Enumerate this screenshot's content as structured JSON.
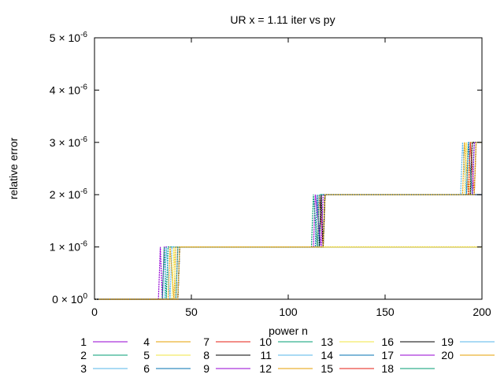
{
  "chart_data": {
    "type": "line",
    "title": "UR x = 1.11 iter vs py",
    "xlabel": "power n",
    "ylabel": "relative error",
    "xlim": [
      0,
      200
    ],
    "ylim": [
      0,
      5e-06
    ],
    "x_ticks": [
      0,
      50,
      100,
      150,
      200
    ],
    "x_tick_labels": [
      "0",
      "50",
      "100",
      "150",
      "200"
    ],
    "y_ticks": [
      0,
      1e-06,
      2e-06,
      3e-06,
      4e-06,
      5e-06
    ],
    "y_tick_mantissa": [
      "0",
      "1",
      "2",
      "3",
      "4",
      "5"
    ],
    "y_tick_exponent": [
      "0",
      "-6",
      "-6",
      "-6",
      "-6",
      "-6"
    ],
    "y_tick_times": "×",
    "y_tick_base": "10",
    "grid": false,
    "legend_position": "bottom",
    "series_colors": [
      "#9400d3",
      "#009e73",
      "#56b4e9",
      "#e69f00",
      "#f0e442",
      "#0072b2",
      "#e51e10",
      "#000000",
      "#9400d3",
      "#009e73",
      "#56b4e9",
      "#e69f00",
      "#f0e442",
      "#0072b2",
      "#e51e10",
      "#000000",
      "#9400d3",
      "#009e73",
      "#56b4e9",
      "#e69f00"
    ],
    "series": [
      {
        "name": "1",
        "x": [
          0,
          33,
          34,
          35,
          36,
          200
        ],
        "y": [
          0,
          0,
          1e-06,
          0,
          1e-06,
          1e-06
        ]
      },
      {
        "name": "2",
        "x": [
          0,
          35,
          36,
          37,
          38,
          200
        ],
        "y": [
          0,
          0,
          1e-06,
          0,
          1e-06,
          1e-06
        ]
      },
      {
        "name": "3",
        "x": [
          0,
          36,
          37,
          39,
          40,
          200
        ],
        "y": [
          0,
          0,
          1e-06,
          0,
          1e-06,
          1e-06
        ]
      },
      {
        "name": "4",
        "x": [
          0,
          38,
          39,
          41,
          42,
          200
        ],
        "y": [
          0,
          0,
          1e-06,
          0,
          1e-06,
          1e-06
        ]
      },
      {
        "name": "5",
        "x": [
          0,
          40,
          41,
          42,
          43,
          200
        ],
        "y": [
          0,
          0,
          1e-06,
          0,
          1e-06,
          1e-06
        ]
      },
      {
        "name": "6",
        "x": [
          0,
          42,
          43,
          114,
          115,
          116,
          117,
          200
        ],
        "y": [
          0,
          0,
          1e-06,
          1e-06,
          2e-06,
          1e-06,
          2e-06,
          2e-06
        ]
      },
      {
        "name": "7",
        "x": [
          0,
          43,
          44,
          115,
          116,
          118,
          119,
          200
        ],
        "y": [
          0,
          0,
          1e-06,
          1e-06,
          2e-06,
          1e-06,
          2e-06,
          2e-06
        ]
      },
      {
        "name": "8",
        "x": [
          0,
          43,
          44,
          116,
          117,
          118,
          119,
          200
        ],
        "y": [
          0,
          0,
          1e-06,
          1e-06,
          2e-06,
          1e-06,
          2e-06,
          2e-06
        ]
      },
      {
        "name": "9",
        "x": [
          0,
          43,
          44,
          113,
          114,
          117,
          118,
          200
        ],
        "y": [
          0,
          0,
          1e-06,
          1e-06,
          2e-06,
          1e-06,
          2e-06,
          2e-06
        ]
      },
      {
        "name": "10",
        "x": [
          0,
          43,
          44,
          112,
          113,
          115,
          116,
          200
        ],
        "y": [
          0,
          0,
          1e-06,
          1e-06,
          2e-06,
          1e-06,
          2e-06,
          2e-06
        ]
      },
      {
        "name": "11",
        "x": [
          0,
          43,
          44,
          118,
          119,
          189,
          190,
          192,
          193,
          200
        ],
        "y": [
          0,
          0,
          1e-06,
          1e-06,
          2e-06,
          2e-06,
          3e-06,
          2e-06,
          3e-06,
          3e-06
        ]
      },
      {
        "name": "12",
        "x": [
          0,
          43,
          44,
          118,
          119,
          190,
          191,
          193,
          194,
          200
        ],
        "y": [
          0,
          0,
          1e-06,
          1e-06,
          2e-06,
          2e-06,
          3e-06,
          2e-06,
          3e-06,
          3e-06
        ]
      },
      {
        "name": "13",
        "x": [
          0,
          43,
          44,
          118,
          119,
          191,
          192,
          194,
          195,
          200
        ],
        "y": [
          0,
          0,
          1e-06,
          1e-06,
          2e-06,
          2e-06,
          3e-06,
          2e-06,
          3e-06,
          3e-06
        ]
      },
      {
        "name": "14",
        "x": [
          0,
          43,
          44,
          118,
          119,
          192,
          193,
          195,
          196,
          200
        ],
        "y": [
          0,
          0,
          1e-06,
          1e-06,
          2e-06,
          2e-06,
          3e-06,
          2e-06,
          3e-06,
          3e-06
        ]
      },
      {
        "name": "15",
        "x": [
          0,
          43,
          44,
          118,
          119,
          193,
          194,
          196,
          197,
          200
        ],
        "y": [
          0,
          0,
          1e-06,
          1e-06,
          2e-06,
          2e-06,
          3e-06,
          2e-06,
          3e-06,
          3e-06
        ]
      },
      {
        "name": "16",
        "x": [
          0,
          43,
          44,
          118,
          119,
          194,
          195,
          200
        ],
        "y": [
          0,
          0,
          1e-06,
          1e-06,
          2e-06,
          2e-06,
          3e-06,
          3e-06
        ]
      },
      {
        "name": "17",
        "x": [
          0,
          43,
          44,
          118,
          119,
          195,
          196,
          200
        ],
        "y": [
          0,
          0,
          1e-06,
          1e-06,
          2e-06,
          2e-06,
          3e-06,
          3e-06
        ]
      },
      {
        "name": "18",
        "x": [
          0,
          43,
          44,
          118,
          119,
          196,
          197,
          200
        ],
        "y": [
          0,
          0,
          1e-06,
          1e-06,
          2e-06,
          2e-06,
          3e-06,
          3e-06
        ]
      },
      {
        "name": "19",
        "x": [
          0,
          43,
          44,
          118,
          119,
          196,
          197,
          200
        ],
        "y": [
          0,
          0,
          1e-06,
          1e-06,
          2e-06,
          2e-06,
          3e-06,
          3e-06
        ]
      },
      {
        "name": "20",
        "x": [
          0,
          43,
          44,
          118,
          119,
          196,
          197,
          200
        ],
        "y": [
          0,
          0,
          1e-06,
          1e-06,
          2e-06,
          2e-06,
          3e-06,
          3e-06
        ]
      }
    ]
  }
}
